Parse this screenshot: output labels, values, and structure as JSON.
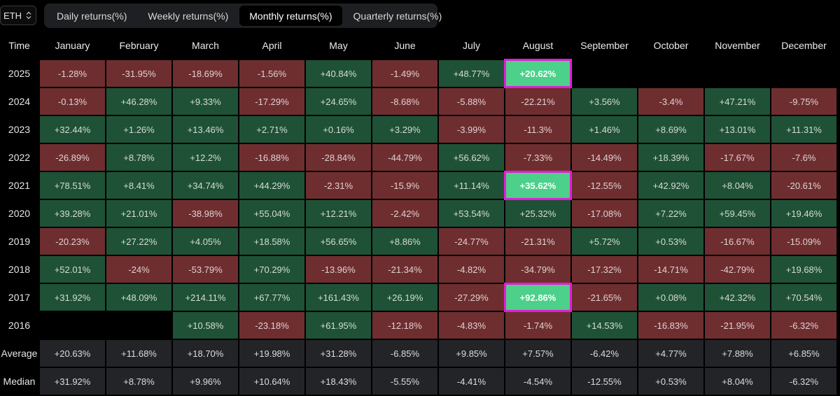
{
  "asset": "ETH",
  "tabs": [
    "Daily returns(%)",
    "Weekly returns(%)",
    "Monthly returns(%)",
    "Quarterly returns(%)"
  ],
  "active_tab": 2,
  "header_label": "Time",
  "months": [
    "January",
    "February",
    "March",
    "April",
    "May",
    "June",
    "July",
    "August",
    "September",
    "October",
    "November",
    "December"
  ],
  "rows": [
    {
      "label": "2025",
      "values": [
        "-1.28%",
        "-31.95%",
        "-18.69%",
        "-1.56%",
        "+40.84%",
        "-1.49%",
        "+48.77%",
        "+20.62%",
        null,
        null,
        null,
        null
      ],
      "highlight": [
        7
      ]
    },
    {
      "label": "2024",
      "values": [
        "-0.13%",
        "+46.28%",
        "+9.33%",
        "-17.29%",
        "+24.65%",
        "-8.68%",
        "-5.88%",
        "-22.21%",
        "+3.56%",
        "-3.4%",
        "+47.21%",
        "-9.75%"
      ],
      "highlight": []
    },
    {
      "label": "2023",
      "values": [
        "+32.44%",
        "+1.26%",
        "+13.46%",
        "+2.71%",
        "+0.16%",
        "+3.29%",
        "-3.99%",
        "-11.3%",
        "+1.46%",
        "+8.69%",
        "+13.01%",
        "+11.31%"
      ],
      "highlight": []
    },
    {
      "label": "2022",
      "values": [
        "-26.89%",
        "+8.78%",
        "+12.2%",
        "-16.88%",
        "-28.84%",
        "-44.79%",
        "+56.62%",
        "-7.33%",
        "-14.49%",
        "+18.39%",
        "-17.67%",
        "-7.6%"
      ],
      "highlight": []
    },
    {
      "label": "2021",
      "values": [
        "+78.51%",
        "+8.41%",
        "+34.74%",
        "+44.29%",
        "-2.31%",
        "-15.9%",
        "+11.14%",
        "+35.62%",
        "-12.55%",
        "+42.92%",
        "+8.04%",
        "-20.61%"
      ],
      "highlight": [
        7
      ]
    },
    {
      "label": "2020",
      "values": [
        "+39.28%",
        "+21.01%",
        "-38.98%",
        "+55.04%",
        "+12.21%",
        "-2.42%",
        "+53.54%",
        "+25.32%",
        "-17.08%",
        "+7.22%",
        "+59.45%",
        "+19.46%"
      ],
      "highlight": []
    },
    {
      "label": "2019",
      "values": [
        "-20.23%",
        "+27.22%",
        "+4.05%",
        "+18.58%",
        "+56.65%",
        "+8.86%",
        "-24.77%",
        "-21.31%",
        "+5.72%",
        "+0.53%",
        "-16.67%",
        "-15.09%"
      ],
      "highlight": []
    },
    {
      "label": "2018",
      "values": [
        "+52.01%",
        "-24%",
        "-53.79%",
        "+70.29%",
        "-13.96%",
        "-21.34%",
        "-4.82%",
        "-34.79%",
        "-17.32%",
        "-14.71%",
        "-42.79%",
        "+19.68%"
      ],
      "highlight": []
    },
    {
      "label": "2017",
      "values": [
        "+31.92%",
        "+48.09%",
        "+214.11%",
        "+67.77%",
        "+161.43%",
        "+26.19%",
        "-27.29%",
        "+92.86%",
        "-21.65%",
        "+0.08%",
        "+42.32%",
        "+70.54%"
      ],
      "highlight": [
        7
      ]
    },
    {
      "label": "2016",
      "values": [
        null,
        null,
        "+10.58%",
        "-23.18%",
        "+61.95%",
        "-12.18%",
        "-4.83%",
        "-1.74%",
        "+14.53%",
        "-16.83%",
        "-21.95%",
        "-6.32%"
      ],
      "highlight": []
    }
  ],
  "stats": [
    {
      "label": "Average",
      "values": [
        "+20.63%",
        "+11.68%",
        "+18.70%",
        "+19.98%",
        "+31.28%",
        "-6.85%",
        "+9.85%",
        "+7.57%",
        "-6.42%",
        "+4.77%",
        "+7.88%",
        "+6.85%"
      ]
    },
    {
      "label": "Median",
      "values": [
        "+31.92%",
        "+8.78%",
        "+9.96%",
        "+10.64%",
        "+18.43%",
        "-5.55%",
        "-4.41%",
        "-4.54%",
        "-12.55%",
        "+0.53%",
        "+8.04%",
        "-6.32%"
      ]
    }
  ]
}
